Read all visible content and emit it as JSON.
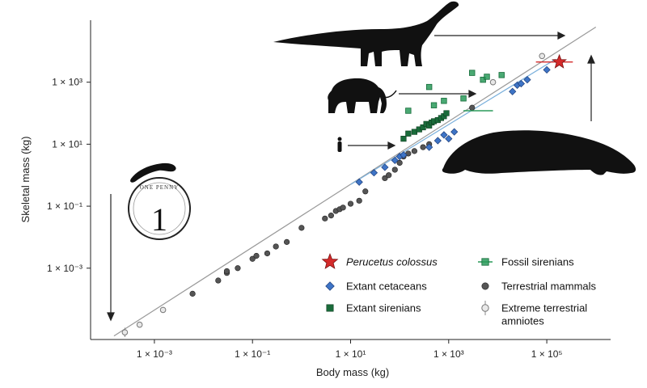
{
  "chart_data": {
    "type": "scatter",
    "x_scale": "log10",
    "y_scale": "log10",
    "xlabel": "Body mass (kg)",
    "ylabel": "Skeletal mass (kg)",
    "xlim": [
      5e-05,
      2000000
    ],
    "ylim": [
      5e-06,
      100000
    ],
    "xticks": [
      {
        "value": 0.001,
        "label": "1 × 10⁻³"
      },
      {
        "value": 0.1,
        "label": "1 × 10⁻¹"
      },
      {
        "value": 10,
        "label": "1 × 10¹"
      },
      {
        "value": 1000,
        "label": "1 × 10³"
      },
      {
        "value": 100000,
        "label": "1 × 10⁵"
      }
    ],
    "yticks": [
      {
        "value": 0.001,
        "label": "1 × 10⁻³"
      },
      {
        "value": 0.1,
        "label": "1 × 10⁻¹"
      },
      {
        "value": 10,
        "label": "1 × 10¹"
      },
      {
        "value": 1000,
        "label": "1 × 10³"
      }
    ],
    "grid": false,
    "legend_position": "bottom-right",
    "fit_lines": [
      {
        "color": "#999999",
        "x": [
          0.00015,
          1000000
        ],
        "y": [
          6.5e-06,
          60000
        ]
      },
      {
        "color": "#7ab0dc",
        "x": [
          10,
          150000
        ],
        "y": [
          0.5,
          5500
        ]
      }
    ],
    "series": [
      {
        "name": "Perucetus colossus",
        "marker": "star",
        "color": "#d42a2a",
        "points": [
          [
            180000,
            4500
          ]
        ],
        "error_x": [
          [
            60000,
            340000
          ]
        ]
      },
      {
        "name": "Extant cetaceans",
        "marker": "diamond",
        "color": "#3e74c6",
        "points": [
          [
            15,
            0.6
          ],
          [
            30,
            1.2
          ],
          [
            50,
            1.8
          ],
          [
            80,
            3
          ],
          [
            100,
            4
          ],
          [
            120,
            4.5
          ],
          [
            400,
            8
          ],
          [
            600,
            13
          ],
          [
            800,
            20
          ],
          [
            1000,
            15
          ],
          [
            1300,
            25
          ],
          [
            20000,
            500
          ],
          [
            25000,
            800
          ],
          [
            30000,
            900
          ],
          [
            40000,
            1200
          ],
          [
            100000,
            2500
          ]
        ]
      },
      {
        "name": "Extant sirenians",
        "marker": "square",
        "color": "#1a6b3a",
        "points": [
          [
            120,
            15
          ],
          [
            150,
            22
          ],
          [
            200,
            25
          ],
          [
            250,
            30
          ],
          [
            300,
            35
          ],
          [
            350,
            45
          ],
          [
            400,
            40
          ],
          [
            450,
            50
          ],
          [
            500,
            55
          ],
          [
            600,
            60
          ],
          [
            700,
            70
          ],
          [
            800,
            80
          ],
          [
            900,
            100
          ]
        ]
      },
      {
        "name": "Fossil sirenians",
        "marker": "square-open",
        "color": "#2a9a5a",
        "points": [
          [
            150,
            120
          ],
          [
            500,
            180
          ],
          [
            800,
            250
          ],
          [
            2000,
            300
          ],
          [
            5000,
            1200
          ],
          [
            6000,
            1500
          ],
          [
            12000,
            1700
          ],
          [
            400,
            700
          ],
          [
            3000,
            2000
          ]
        ],
        "error_x": [
          [
            2000,
            8000
          ]
        ]
      },
      {
        "name": "Terrestrial mammals",
        "marker": "circle",
        "color": "#555555",
        "points": [
          [
            0.006,
            0.00015
          ],
          [
            0.02,
            0.0004
          ],
          [
            0.03,
            0.0007
          ],
          [
            0.03,
            0.0008
          ],
          [
            0.05,
            0.001
          ],
          [
            0.1,
            0.002
          ],
          [
            0.12,
            0.0025
          ],
          [
            0.2,
            0.003
          ],
          [
            0.3,
            0.005
          ],
          [
            0.5,
            0.007
          ],
          [
            1,
            0.02
          ],
          [
            3,
            0.04
          ],
          [
            4,
            0.05
          ],
          [
            5,
            0.07
          ],
          [
            6,
            0.08
          ],
          [
            7,
            0.09
          ],
          [
            10,
            0.12
          ],
          [
            15,
            0.15
          ],
          [
            20,
            0.3
          ],
          [
            50,
            0.8
          ],
          [
            60,
            1
          ],
          [
            80,
            1.5
          ],
          [
            100,
            2.5
          ],
          [
            120,
            4
          ],
          [
            150,
            5
          ],
          [
            200,
            6
          ],
          [
            300,
            8
          ],
          [
            400,
            10
          ],
          [
            3000,
            150
          ]
        ]
      },
      {
        "name": "Extreme terrestrial amniotes",
        "marker": "circle-open",
        "color": "#bbbbbb",
        "points": [
          [
            0.00025,
            8.5e-06
          ],
          [
            0.0005,
            1.5e-05
          ],
          [
            0.0015,
            4.5e-05
          ],
          [
            8000,
            1000
          ],
          [
            80000,
            7000
          ]
        ],
        "error_y": [
          [
            6e-06,
            1.2e-05
          ]
        ]
      }
    ]
  }
}
